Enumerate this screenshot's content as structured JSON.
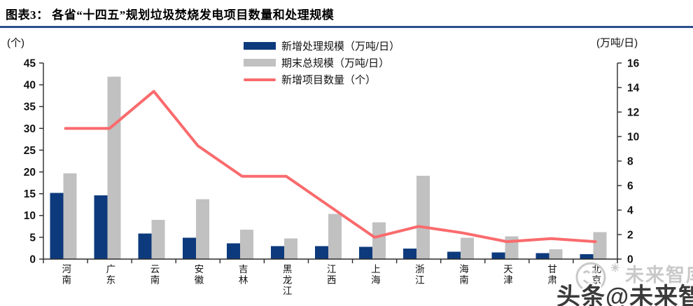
{
  "header": {
    "title": "图表3：  各省“十四五”规划垃圾焚烧发电项目数量和处理规模"
  },
  "chart_data": {
    "type": "bar+line",
    "categories": [
      "河南",
      "广东",
      "云南",
      "安徽",
      "吉林",
      "黑龙江",
      "江西",
      "上海",
      "浙江",
      "海南",
      "天津",
      "甘肃",
      "北京"
    ],
    "series": [
      {
        "name": "新增处理规模（万吨/日）",
        "type": "bar",
        "axis": "right",
        "color": "#0d3a7c",
        "values": [
          5.4,
          5.2,
          2.1,
          1.75,
          1.3,
          1.05,
          1.05,
          1.0,
          0.85,
          0.6,
          0.55,
          0.5,
          0.4
        ]
      },
      {
        "name": "期末总规模（万吨/日）",
        "type": "bar",
        "axis": "right",
        "color": "#c1c1c1",
        "values": [
          7.0,
          14.9,
          3.2,
          4.9,
          2.4,
          1.7,
          3.7,
          3.0,
          6.8,
          1.75,
          1.85,
          0.8,
          2.2
        ]
      },
      {
        "name": "新增项目数量（个）",
        "type": "line",
        "axis": "left",
        "color": "#fa6b6d",
        "values": [
          30,
          30,
          38.5,
          26,
          19,
          19,
          12,
          5,
          7.5,
          6,
          4,
          4.7,
          4
        ]
      }
    ],
    "left_axis": {
      "unit": "(个)",
      "min": 0,
      "max": 45,
      "step": 5,
      "ticks": [
        0,
        5,
        10,
        15,
        20,
        25,
        30,
        35,
        40,
        45
      ]
    },
    "right_axis": {
      "unit": "(万吨/日)",
      "min": 0,
      "max": 16,
      "step": 2,
      "ticks": [
        0,
        2,
        4,
        6,
        8,
        10,
        12,
        14,
        16
      ]
    },
    "legend_position": "top-center",
    "grid": false
  },
  "watermark": {
    "brand_light": "未来智库",
    "brand_dark": "头条@未来智库",
    "logo": "smiley-face-icon",
    "light_color": "#c9c9c9",
    "dark_color": "#3a3a3a"
  },
  "colors": {
    "title_rule": "#2e4f8e",
    "axis": "#2b2b2b"
  }
}
